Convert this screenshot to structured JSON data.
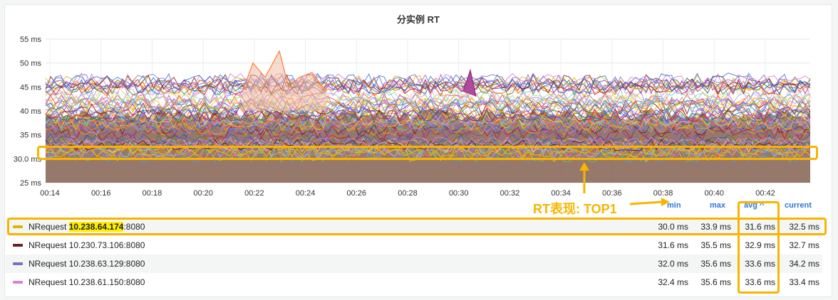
{
  "panel": {
    "title": "分实例 RT"
  },
  "chart_data": {
    "type": "line",
    "title": "分实例 RT",
    "y_ticks": [
      "55 ms",
      "50 ms",
      "45 ms",
      "40 ms",
      "35 ms",
      "30.0 ms",
      "25 ms"
    ],
    "x_ticks": [
      "00:14",
      "00:16",
      "00:18",
      "00:20",
      "00:22",
      "00:24",
      "00:26",
      "00:28",
      "00:30",
      "00:32",
      "00:34",
      "00:36",
      "00:38",
      "00:40",
      "00:42"
    ],
    "ylim": [
      25,
      55
    ],
    "series_count_approx": 60,
    "series": [
      {
        "name": "NRequest 10.238.64.174:8080",
        "color": "#e0b400",
        "min": 30.0,
        "max": 33.9,
        "avg": 31.6,
        "current": 32.5
      },
      {
        "name": "NRequest 10.230.73.106:8080",
        "color": "#6e1f1f",
        "min": 31.6,
        "max": 35.5,
        "avg": 32.9,
        "current": 32.7
      },
      {
        "name": "NRequest 10.238.63.129:8080",
        "color": "#7f6cc4",
        "min": 32.0,
        "max": 35.6,
        "avg": 33.6,
        "current": 34.2
      },
      {
        "name": "NRequest 10.238.61.150:8080",
        "color": "#d683ce",
        "min": 32.4,
        "max": 35.6,
        "avg": 33.6,
        "current": 33.4
      }
    ]
  },
  "legend": {
    "headers": {
      "min": "min",
      "max": "max",
      "avg": "avg ^",
      "current": "current"
    },
    "rows": [
      {
        "prefix": "NRequest ",
        "ip": "10.238.64.174",
        "port": ":8080",
        "min": "30.0 ms",
        "max": "33.9 ms",
        "avg": "31.6 ms",
        "current": "32.5 ms",
        "color": "#e0b400"
      },
      {
        "prefix": "NRequest ",
        "ip": "10.230.73.106",
        "port": ":8080",
        "min": "31.6 ms",
        "max": "35.5 ms",
        "avg": "32.9 ms",
        "current": "32.7 ms",
        "color": "#6e1f1f"
      },
      {
        "prefix": "NRequest ",
        "ip": "10.238.63.129",
        "port": ":8080",
        "min": "32.0 ms",
        "max": "35.6 ms",
        "avg": "33.6 ms",
        "current": "34.2 ms",
        "color": "#7f6cc4"
      },
      {
        "prefix": "NRequest ",
        "ip": "10.238.61.150",
        "port": ":8080",
        "min": "32.4 ms",
        "max": "35.6 ms",
        "avg": "33.6 ms",
        "current": "33.4 ms",
        "color": "#d683ce"
      }
    ]
  },
  "annotation": {
    "text": "RT表现: TOP1",
    "color": "#f7b500"
  }
}
